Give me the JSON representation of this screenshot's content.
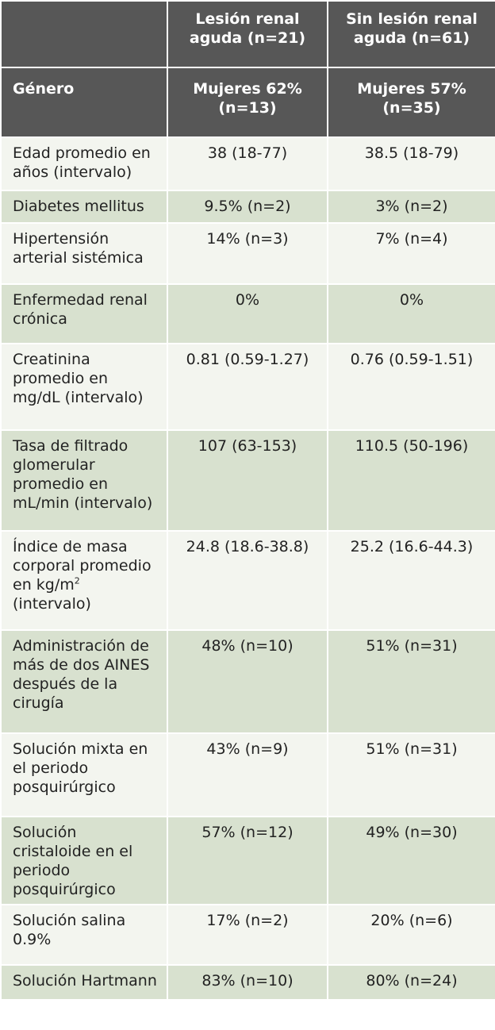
{
  "header": {
    "col1": "",
    "col2": "Lesión renal aguda (n=21)",
    "col3": "Sin lesión renal aguda (n=61)"
  },
  "subheader": {
    "label": "Género",
    "col2": "Mujeres 62% (n=13)",
    "col3": "Mujeres 57% (n=35)"
  },
  "rows": [
    {
      "label": "Edad promedio en años (intervalo)",
      "aki": "38 (18-77)",
      "no_aki": "38.5 (18-79)"
    },
    {
      "label": "Diabetes mellitus",
      "aki": "9.5% (n=2)",
      "no_aki": "3% (n=2)"
    },
    {
      "label": "Hipertensión arterial sistémica",
      "aki": "14% (n=3)",
      "no_aki": "7% (n=4)"
    },
    {
      "label": "Enfermedad renal crónica",
      "aki": "0%",
      "no_aki": "0%"
    },
    {
      "label": "Creatinina promedio en mg/dL (intervalo)",
      "aki": "0.81 (0.59-1.27)",
      "no_aki": "0.76 (0.59-1.51)"
    },
    {
      "label": "Tasa de filtrado glomerular promedio en mL/min (intervalo)",
      "aki": "107 (63-153)",
      "no_aki": "110.5 (50-196)"
    },
    {
      "label_before": "Índice de masa corporal promedio en kg/m",
      "label_sup": "2",
      "label_after": " (intervalo)",
      "aki": "24.8 (18.6-38.8)",
      "no_aki": "25.2 (16.6-44.3)"
    },
    {
      "label": "Administración de más de dos AINES después de la cirugía",
      "aki": "48% (n=10)",
      "no_aki": "51% (n=31)"
    },
    {
      "label": "Solución mixta en el periodo posquirúrgico",
      "aki": "43% (n=9)",
      "no_aki": "51% (n=31)"
    },
    {
      "label": "Solución cristaloide en el periodo posquirúrgico",
      "aki": "57% (n=12)",
      "no_aki": "49% (n=30)"
    },
    {
      "label": "Solución salina 0.9%",
      "aki": "17% (n=2)",
      "no_aki": "20% (n=6)"
    },
    {
      "label": "Solución Hartmann",
      "aki": "83% (n=10)",
      "no_aki": "80% (n=24)"
    }
  ],
  "colors": {
    "header_bg": "#575757",
    "row_light": "#f3f5ef",
    "row_dark": "#d8e1cf",
    "text": "#222222"
  }
}
